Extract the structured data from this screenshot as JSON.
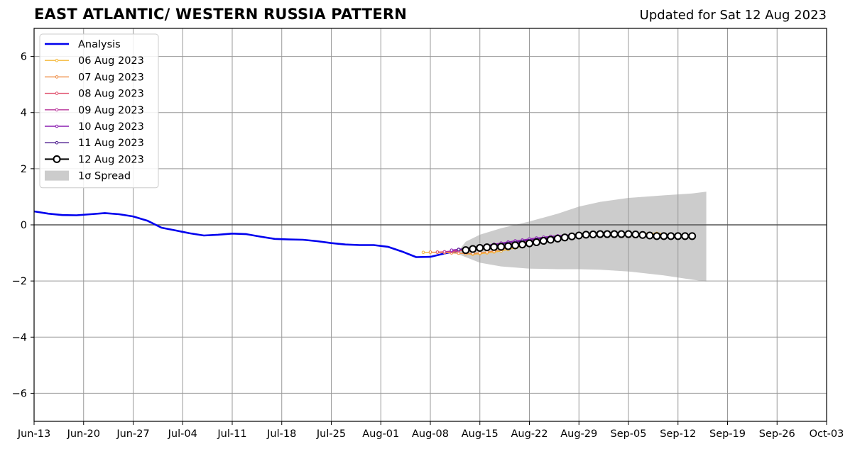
{
  "chart_data": {
    "type": "line",
    "title": "EAST ATLANTIC/ WESTERN RUSSIA PATTERN",
    "subtitle": "Updated for Sat 12 Aug 2023",
    "xlabel": "",
    "ylabel": "",
    "x_range": [
      "2023-06-13",
      "2023-10-03"
    ],
    "ylim": [
      -7,
      7
    ],
    "grid": true,
    "legend_position": "top-left",
    "x_ticks": [
      "Jun-13",
      "Jun-20",
      "Jun-27",
      "Jul-04",
      "Jul-11",
      "Jul-18",
      "Jul-25",
      "Aug-01",
      "Aug-08",
      "Aug-15",
      "Aug-22",
      "Aug-29",
      "Sep-05",
      "Sep-12",
      "Sep-19",
      "Sep-26",
      "Oct-03"
    ],
    "y_ticks": [
      "6",
      "4",
      "2",
      "0",
      "−2",
      "−4",
      "−6"
    ],
    "y_tick_values": [
      6,
      4,
      2,
      0,
      -2,
      -4,
      -6
    ],
    "analysis": {
      "name": "Analysis",
      "color": "#0000ee",
      "points": [
        [
          "2023-06-13",
          0.48
        ],
        [
          "2023-06-15",
          0.4
        ],
        [
          "2023-06-17",
          0.35
        ],
        [
          "2023-06-19",
          0.34
        ],
        [
          "2023-06-21",
          0.38
        ],
        [
          "2023-06-23",
          0.42
        ],
        [
          "2023-06-25",
          0.38
        ],
        [
          "2023-06-27",
          0.3
        ],
        [
          "2023-06-29",
          0.15
        ],
        [
          "2023-07-01",
          -0.1
        ],
        [
          "2023-07-03",
          -0.2
        ],
        [
          "2023-07-05",
          -0.3
        ],
        [
          "2023-07-07",
          -0.38
        ],
        [
          "2023-07-09",
          -0.35
        ],
        [
          "2023-07-11",
          -0.31
        ],
        [
          "2023-07-13",
          -0.33
        ],
        [
          "2023-07-15",
          -0.42
        ],
        [
          "2023-07-17",
          -0.5
        ],
        [
          "2023-07-19",
          -0.52
        ],
        [
          "2023-07-21",
          -0.53
        ],
        [
          "2023-07-23",
          -0.58
        ],
        [
          "2023-07-25",
          -0.65
        ],
        [
          "2023-07-27",
          -0.7
        ],
        [
          "2023-07-29",
          -0.72
        ],
        [
          "2023-07-31",
          -0.72
        ],
        [
          "2023-08-02",
          -0.78
        ],
        [
          "2023-08-04",
          -0.95
        ],
        [
          "2023-08-06",
          -1.15
        ],
        [
          "2023-08-08",
          -1.14
        ],
        [
          "2023-08-10",
          -1.02
        ],
        [
          "2023-08-12",
          -0.92
        ]
      ]
    },
    "forecasts": [
      {
        "name": "06 Aug 2023",
        "color": "#f4b83a",
        "start": "2023-08-07",
        "values": [
          -0.98,
          -0.98,
          -0.97,
          -0.97,
          -0.98,
          -1.0,
          -1.03,
          -1.05,
          -1.03,
          -1.0,
          -0.97,
          -0.93,
          -0.88,
          -0.82,
          -0.76,
          -0.7,
          -0.64,
          -0.58,
          -0.52,
          -0.47,
          -0.42,
          -0.39,
          -0.37,
          -0.35,
          -0.33,
          -0.32,
          -0.31,
          -0.3,
          -0.3,
          -0.3,
          -0.29,
          -0.3,
          -0.3,
          -0.3,
          -0.32
        ]
      },
      {
        "name": "07 Aug 2023",
        "color": "#ef8c43",
        "start": "2023-08-08",
        "values": [
          -0.97,
          -0.98,
          -0.99,
          -1.0,
          -1.01,
          -1.02,
          -1.02,
          -1.0,
          -0.97,
          -0.93,
          -0.88,
          -0.82,
          -0.76,
          -0.7,
          -0.64,
          -0.58,
          -0.53,
          -0.48,
          -0.44,
          -0.4,
          -0.38,
          -0.36,
          -0.34,
          -0.33,
          -0.32,
          -0.32,
          -0.31,
          -0.31,
          -0.31,
          -0.32,
          -0.33,
          -0.33,
          -0.34,
          -0.35
        ]
      },
      {
        "name": "08 Aug 2023",
        "color": "#e0506c",
        "start": "2023-08-09",
        "values": [
          -0.97,
          -0.96,
          -0.95,
          -0.93,
          -0.9,
          -0.87,
          -0.84,
          -0.8,
          -0.77,
          -0.73,
          -0.69,
          -0.65,
          -0.61,
          -0.57,
          -0.53,
          -0.49,
          -0.46,
          -0.43,
          -0.4,
          -0.38,
          -0.36,
          -0.35,
          -0.34,
          -0.33,
          -0.33,
          -0.33,
          -0.33,
          -0.34,
          -0.35,
          -0.36,
          -0.37,
          -0.38,
          -0.39
        ]
      },
      {
        "name": "09 Aug 2023",
        "color": "#b8349a",
        "start": "2023-08-10",
        "values": [
          -0.96,
          -0.93,
          -0.9,
          -0.87,
          -0.84,
          -0.8,
          -0.76,
          -0.73,
          -0.69,
          -0.65,
          -0.61,
          -0.57,
          -0.53,
          -0.5,
          -0.46,
          -0.43,
          -0.4,
          -0.38,
          -0.36,
          -0.34,
          -0.33,
          -0.32,
          -0.32,
          -0.32,
          -0.33,
          -0.34,
          -0.35,
          -0.36,
          -0.37,
          -0.38,
          -0.39,
          -0.4
        ]
      },
      {
        "name": "10 Aug 2023",
        "color": "#8c1eb0",
        "start": "2023-08-11",
        "values": [
          -0.9,
          -0.87,
          -0.84,
          -0.8,
          -0.77,
          -0.73,
          -0.69,
          -0.65,
          -0.61,
          -0.57,
          -0.54,
          -0.5,
          -0.47,
          -0.44,
          -0.41,
          -0.39,
          -0.37,
          -0.35,
          -0.34,
          -0.33,
          -0.32,
          -0.32,
          -0.32,
          -0.33,
          -0.34,
          -0.35,
          -0.36,
          -0.37,
          -0.38,
          -0.39,
          -0.4
        ]
      },
      {
        "name": "11 Aug 2023",
        "color": "#4a1a8c",
        "start": "2023-08-12",
        "values": [
          -0.88,
          -0.85,
          -0.82,
          -0.79,
          -0.76,
          -0.72,
          -0.69,
          -0.65,
          -0.62,
          -0.58,
          -0.55,
          -0.51,
          -0.48,
          -0.45,
          -0.42,
          -0.4,
          -0.38,
          -0.36,
          -0.35,
          -0.34,
          -0.33,
          -0.33,
          -0.33,
          -0.34,
          -0.35,
          -0.36,
          -0.37,
          -0.38,
          -0.39,
          -0.4
        ]
      },
      {
        "name": "12 Aug 2023",
        "color": "#000000",
        "start": "2023-08-13",
        "values": [
          -0.9,
          -0.86,
          -0.82,
          -0.8,
          -0.79,
          -0.78,
          -0.76,
          -0.73,
          -0.7,
          -0.66,
          -0.62,
          -0.57,
          -0.53,
          -0.49,
          -0.45,
          -0.41,
          -0.38,
          -0.35,
          -0.34,
          -0.33,
          -0.33,
          -0.33,
          -0.33,
          -0.33,
          -0.34,
          -0.36,
          -0.38,
          -0.4,
          -0.4,
          -0.4,
          -0.4,
          -0.4,
          -0.4
        ]
      }
    ],
    "spread": {
      "name": "1σ Spread",
      "color": "#cccccc",
      "x": [
        "2023-08-12",
        "2023-08-13",
        "2023-08-15",
        "2023-08-18",
        "2023-08-22",
        "2023-08-26",
        "2023-08-29",
        "2023-09-01",
        "2023-09-05",
        "2023-09-10",
        "2023-09-14",
        "2023-09-16"
      ],
      "upper": [
        -0.92,
        -0.6,
        -0.35,
        -0.12,
        0.12,
        0.4,
        0.65,
        0.82,
        0.96,
        1.05,
        1.12,
        1.18
      ],
      "lower": [
        -1.05,
        -1.15,
        -1.35,
        -1.48,
        -1.56,
        -1.58,
        -1.58,
        -1.6,
        -1.66,
        -1.8,
        -1.95,
        -2.02
      ]
    }
  }
}
